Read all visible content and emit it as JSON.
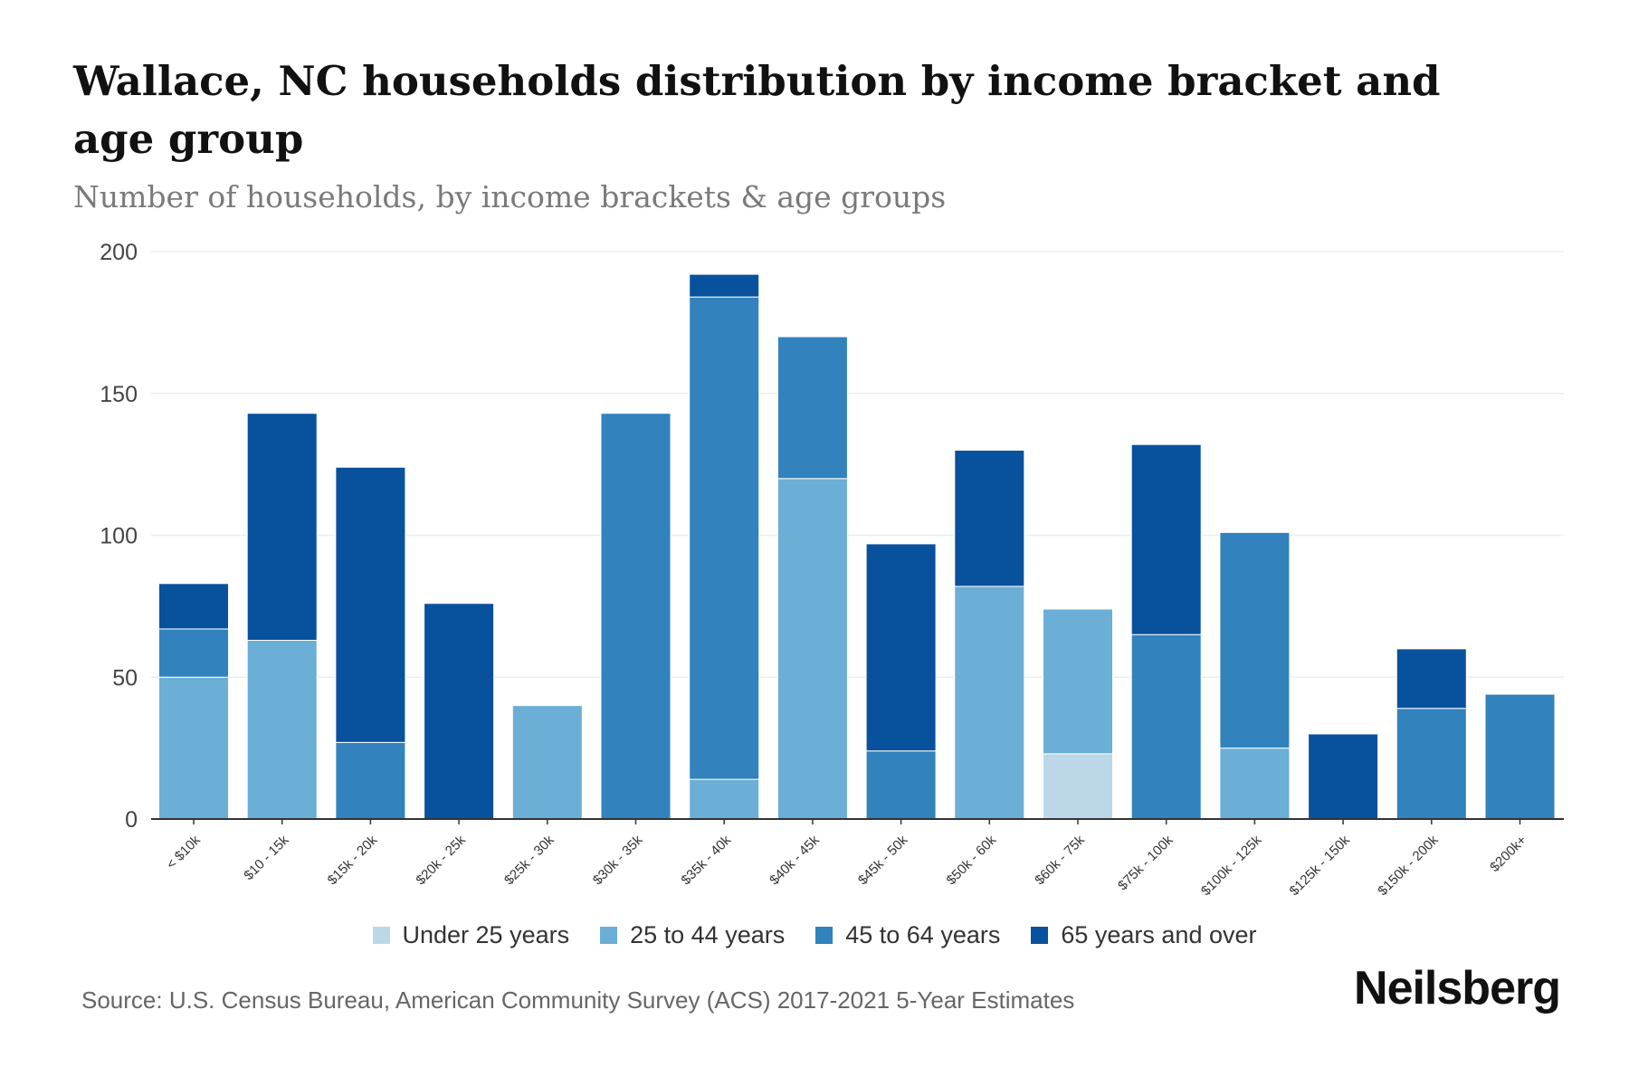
{
  "header": {
    "title": "Wallace, NC households distribution by income bracket and age group",
    "subtitle": "Number of households, by income brackets & age groups"
  },
  "footer": {
    "source": "Source: U.S. Census Bureau, American Community Survey (ACS) 2017-2021 5-Year Estimates",
    "logo": "Neilsberg"
  },
  "chart_data": {
    "type": "bar",
    "stacked": true,
    "title": "Wallace, NC households distribution by income bracket and age group",
    "ylabel": "Number of households",
    "ylim": [
      0,
      200
    ],
    "yticks": [
      0,
      50,
      100,
      150,
      200
    ],
    "grid": true,
    "legend_position": "bottom",
    "categories": [
      "< $10k",
      "$10 - 15k",
      "$15k - 20k",
      "$20k - 25k",
      "$25k - 30k",
      "$30k - 35k",
      "$35k - 40k",
      "$40k - 45k",
      "$45k - 50k",
      "$50k - 60k",
      "$60k - 75k",
      "$75k - 100k",
      "$100k - 125k",
      "$125k - 150k",
      "$150k - 200k",
      "$200k+"
    ],
    "series": [
      {
        "name": "Under 25 years",
        "color": "#bcd8e8",
        "values": [
          0,
          0,
          0,
          0,
          0,
          0,
          0,
          0,
          0,
          0,
          23,
          0,
          0,
          0,
          0,
          0
        ]
      },
      {
        "name": "25 to 44 years",
        "color": "#6baed6",
        "values": [
          50,
          63,
          0,
          0,
          40,
          0,
          14,
          120,
          0,
          82,
          51,
          0,
          25,
          0,
          0,
          0
        ]
      },
      {
        "name": "45 to 64 years",
        "color": "#3182bd",
        "values": [
          17,
          0,
          27,
          0,
          0,
          143,
          170,
          50,
          24,
          0,
          0,
          65,
          76,
          0,
          39,
          44
        ]
      },
      {
        "name": "65 years and over",
        "color": "#08519c",
        "values": [
          16,
          80,
          97,
          76,
          0,
          0,
          8,
          0,
          73,
          48,
          0,
          67,
          0,
          30,
          21,
          0
        ]
      }
    ]
  }
}
